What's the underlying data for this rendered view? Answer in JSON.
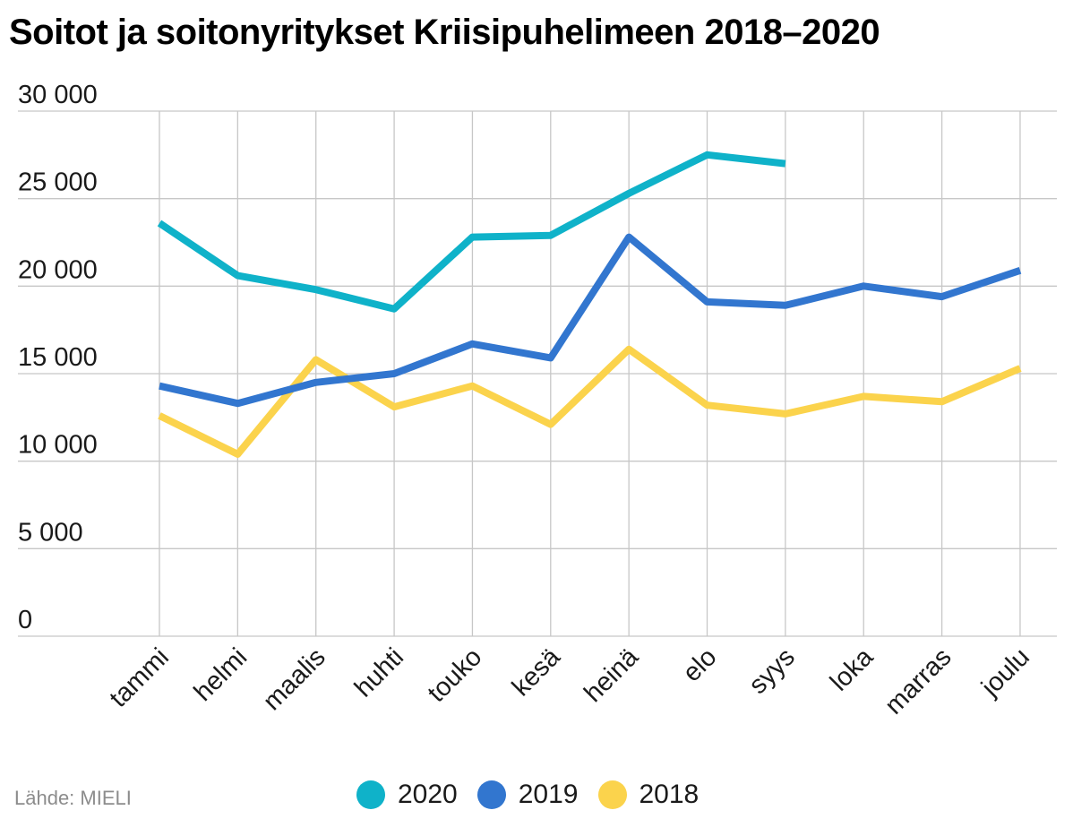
{
  "chart_data": {
    "type": "line",
    "title": "Soitot ja soitonyritykset Kriisipuhelimeen 2018–2020",
    "categories": [
      "tammi",
      "helmi",
      "maalis",
      "huhti",
      "touko",
      "kesä",
      "heinä",
      "elo",
      "syys",
      "loka",
      "marras",
      "joulu"
    ],
    "y_ticks": [
      {
        "value": 0,
        "label": "0"
      },
      {
        "value": 5000,
        "label": "5 000"
      },
      {
        "value": 10000,
        "label": "10 000"
      },
      {
        "value": 15000,
        "label": "15 000"
      },
      {
        "value": 20000,
        "label": "20 000"
      },
      {
        "value": 25000,
        "label": "25 000"
      },
      {
        "value": 30000,
        "label": "30 000"
      }
    ],
    "ylim": [
      0,
      30000
    ],
    "xlabel": "",
    "ylabel": "",
    "grid": true,
    "legend_position": "bottom",
    "series": [
      {
        "name": "2020",
        "color": "#0fb2c9",
        "values": [
          23600,
          20600,
          19800,
          18700,
          22800,
          22900,
          25300,
          27500,
          27000,
          null,
          null,
          null
        ]
      },
      {
        "name": "2019",
        "color": "#3276cf",
        "values": [
          14300,
          13300,
          14500,
          15000,
          16700,
          15900,
          22800,
          19100,
          18900,
          20000,
          19400,
          20900
        ]
      },
      {
        "name": "2018",
        "color": "#fbd34c",
        "values": [
          12600,
          10400,
          15800,
          13100,
          14300,
          12100,
          16400,
          13200,
          12700,
          13700,
          13400,
          15300
        ]
      }
    ],
    "source": "Lähde: MIELI"
  }
}
